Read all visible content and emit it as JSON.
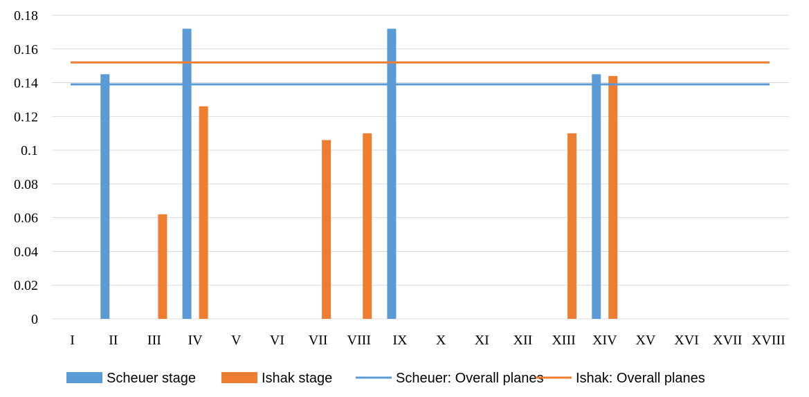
{
  "chart_data": {
    "type": "bar",
    "categories": [
      "I",
      "II",
      "III",
      "IV",
      "V",
      "VI",
      "VII",
      "VIII",
      "IX",
      "X",
      "XI",
      "XII",
      "XIII",
      "XIV",
      "XV",
      "XVI",
      "XVII",
      "XVIII"
    ],
    "series": [
      {
        "name": "Scheuer stage",
        "kind": "bar",
        "color": "#5B9BD5",
        "values": [
          0,
          0.145,
          0,
          0.172,
          0,
          0,
          0,
          0,
          0.172,
          0,
          0,
          0,
          0,
          0.145,
          0,
          0,
          0,
          0
        ]
      },
      {
        "name": "Ishak stage",
        "kind": "bar",
        "color": "#ED7D31",
        "values": [
          0,
          0,
          0.062,
          0.126,
          0,
          0,
          0.106,
          0.11,
          0,
          0,
          0,
          0,
          0.11,
          0.144,
          0,
          0,
          0,
          0
        ]
      },
      {
        "name": "Scheuer: Overall planes",
        "kind": "line",
        "color": "#5B9BD5",
        "value": 0.139
      },
      {
        "name": "Ishak: Overall planes",
        "kind": "line",
        "color": "#ED7D31",
        "value": 0.152
      }
    ],
    "yticks": [
      "0",
      "0.02",
      "0.04",
      "0.06",
      "0.08",
      "0.1",
      "0.12",
      "0.14",
      "0.16",
      "0.18"
    ],
    "ylim": [
      0,
      0.18
    ],
    "grid": true,
    "legend_position": "bottom"
  }
}
